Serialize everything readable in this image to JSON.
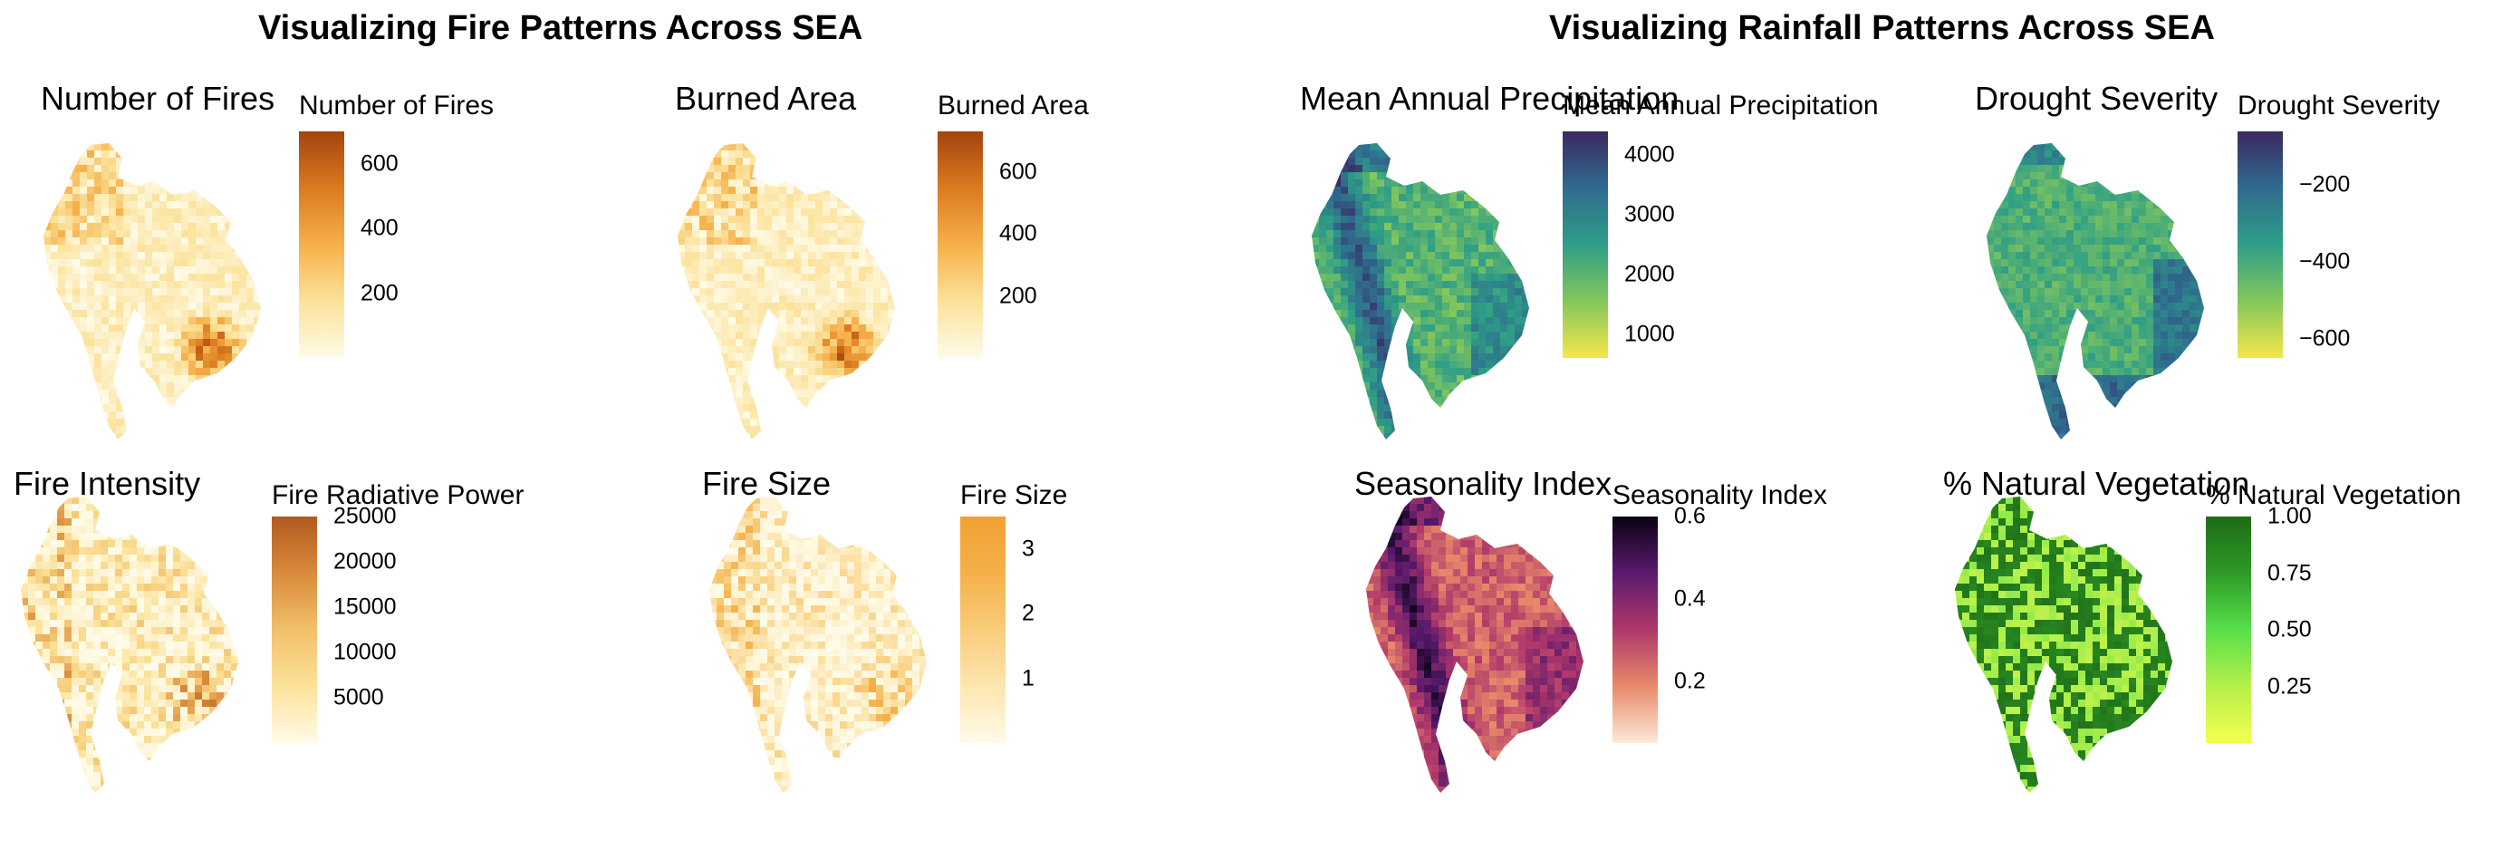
{
  "left_section": {
    "title": "Visualizing Fire Patterns Across SEA"
  },
  "right_section": {
    "title": "Visualizing Rainfall Patterns Across SEA"
  },
  "panels": [
    {
      "key": "fires",
      "title": "Number of Fires",
      "legend_title": "Number of Fires",
      "ticks": [
        "600",
        "400",
        "200"
      ],
      "tick_values": [
        600,
        400,
        200
      ],
      "range": [
        0,
        700
      ],
      "colors": [
        "#fffbe8",
        "#fce29a",
        "#f6b04a",
        "#dc7a1f",
        "#a3440e"
      ],
      "highlight": "south"
    },
    {
      "key": "burned",
      "title": "Burned Area",
      "legend_title": "Burned Area",
      "ticks": [
        "600",
        "400",
        "200"
      ],
      "tick_values": [
        600,
        400,
        200
      ],
      "range": [
        0,
        730
      ],
      "colors": [
        "#fffbe8",
        "#fce29a",
        "#f6b04a",
        "#dc7a1f",
        "#a3440e"
      ],
      "highlight": "south"
    },
    {
      "key": "precip",
      "title": "Mean Annual Precipitation",
      "legend_title": "Mean Annual Precipitation",
      "ticks": [
        "4000",
        "3000",
        "2000",
        "1000"
      ],
      "tick_values": [
        4000,
        3000,
        2000,
        1000
      ],
      "range": [
        600,
        4400
      ],
      "colors": [
        "#f5e64a",
        "#84c75c",
        "#2e9e86",
        "#2f6b8e",
        "#3b2960"
      ],
      "highlight": "west"
    },
    {
      "key": "drought",
      "title": "Drought Severity",
      "legend_title": "Drought Severity",
      "ticks": [
        "−200",
        "−400",
        "−600"
      ],
      "tick_values": [
        -200,
        -400,
        -600
      ],
      "range": [
        -650,
        -60
      ],
      "colors": [
        "#f5e64a",
        "#84c75c",
        "#2e9e86",
        "#2f6b8e",
        "#3b2960"
      ],
      "highlight": "east"
    },
    {
      "key": "frp",
      "title": "Fire Intensity",
      "legend_title": "Fire Radiative Power",
      "ticks": [
        "25000",
        "20000",
        "15000",
        "10000",
        "5000"
      ],
      "tick_values": [
        25000,
        20000,
        15000,
        10000,
        5000
      ],
      "range": [
        0,
        25000
      ],
      "colors": [
        "#fffbe8",
        "#fce29a",
        "#f2c06a",
        "#d98a3a",
        "#b05a20"
      ],
      "highlight": "scatter"
    },
    {
      "key": "size",
      "title": "Fire Size",
      "legend_title": "Fire Size",
      "ticks": [
        "3",
        "2",
        "1"
      ],
      "tick_values": [
        3,
        2,
        1
      ],
      "range": [
        0,
        3.5
      ],
      "colors": [
        "#fffbe8",
        "#fde6b0",
        "#f9cc7a",
        "#f5b04a",
        "#f1a133"
      ],
      "highlight": "scatter"
    },
    {
      "key": "season",
      "title": "Seasonality Index",
      "legend_title": "Seasonality Index",
      "ticks": [
        "0.6",
        "0.4",
        "0.2"
      ],
      "tick_values": [
        0.6,
        0.4,
        0.2
      ],
      "range": [
        0.05,
        0.6
      ],
      "colors": [
        "#fde9d8",
        "#e88a6a",
        "#b0386a",
        "#5a1a6e",
        "#0a0214"
      ],
      "highlight": "west"
    },
    {
      "key": "veg",
      "title": "% Natural Vegetation",
      "legend_title": "% Natural Vegetation",
      "ticks": [
        "1.00",
        "0.75",
        "0.50",
        "0.25"
      ],
      "tick_values": [
        1.0,
        0.75,
        0.5,
        0.25
      ],
      "range": [
        0,
        1
      ],
      "colors": [
        "#f4ff50",
        "#b6f04a",
        "#57e04a",
        "#2e9a28",
        "#1e6b16"
      ],
      "highlight": "veg"
    }
  ]
}
